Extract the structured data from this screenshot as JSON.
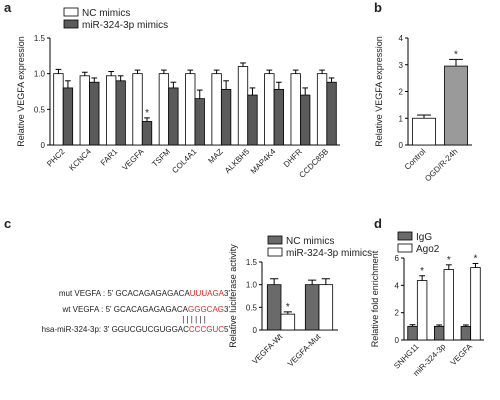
{
  "chart_data": [
    {
      "type": "bar",
      "panel_label": "a",
      "y_label": "Relative VEGFA expression",
      "categories": [
        "PHC2",
        "KCNC4",
        "FAR1",
        "VEGFA",
        "TSFM",
        "COL4A1",
        "MAZ",
        "ALKBH5",
        "MAP4K4",
        "DHFR",
        "CCDC85B"
      ],
      "series": [
        {
          "name": "NC mimics",
          "color": "#ffffff",
          "values": [
            1.0,
            0.97,
            0.97,
            1.0,
            1.0,
            1.0,
            1.0,
            1.1,
            1.0,
            1.0,
            1.0
          ],
          "errors": [
            0.06,
            0.05,
            0.06,
            0.05,
            0.05,
            0.05,
            0.05,
            0.05,
            0.05,
            0.05,
            0.05
          ],
          "labels": [
            null,
            null,
            null,
            null,
            null,
            null,
            null,
            null,
            null,
            null,
            null
          ]
        },
        {
          "name": "miR-324-3p mimics",
          "color": "#5a5a5a",
          "values": [
            0.8,
            0.88,
            0.9,
            0.33,
            0.8,
            0.65,
            0.78,
            0.7,
            0.78,
            0.7,
            0.88
          ],
          "errors": [
            0.1,
            0.06,
            0.07,
            0.05,
            0.08,
            0.12,
            0.12,
            0.1,
            0.1,
            0.1,
            0.06
          ],
          "labels": [
            null,
            null,
            null,
            "*",
            null,
            null,
            null,
            null,
            null,
            null,
            null
          ]
        }
      ],
      "ylim": [
        0,
        1.5
      ],
      "yticks": [
        0,
        0.5,
        {
          "value": 1,
          "label": "1.0"
        },
        1.5
      ]
    },
    {
      "type": "bar",
      "panel_label": "b",
      "y_label": "Relative VEGFA expression",
      "categories": [
        "Control",
        "OGD/R-24h"
      ],
      "values": [
        1.0,
        2.95
      ],
      "errors": [
        0.12,
        0.25
      ],
      "colors": [
        "#ffffff",
        "#9a9a9a"
      ],
      "labels": [
        null,
        "*"
      ],
      "ylim": [
        0,
        4
      ],
      "yticks": [
        0,
        1,
        2,
        3,
        4
      ]
    },
    {
      "type": "bar",
      "panel_label": "c",
      "y_label": "Relative luciferase activity",
      "categories": [
        "VEGFA-Wt",
        "VEGFA-Mut"
      ],
      "series": [
        {
          "name": "NC mimics",
          "color": "#6a6a6a",
          "values": [
            1.0,
            1.0
          ],
          "errors": [
            0.13,
            0.1
          ],
          "labels": [
            null,
            null
          ]
        },
        {
          "name": "miR-324-3p mimics",
          "color": "#ffffff",
          "values": [
            0.35,
            1.0
          ],
          "errors": [
            0.05,
            0.13
          ],
          "labels": [
            "*",
            null
          ]
        }
      ],
      "ylim": [
        0,
        1.5
      ],
      "yticks": [
        0,
        0.5,
        {
          "value": 1,
          "label": "1.0"
        },
        1.5
      ]
    },
    {
      "type": "bar",
      "panel_label": "d",
      "y_label": "Relative fold enrichment",
      "categories": [
        "SNHG11",
        "miR-324-3p",
        "VEGFA"
      ],
      "series": [
        {
          "name": "IgG",
          "color": "#6a6a6a",
          "values": [
            1.0,
            1.0,
            1.0
          ],
          "errors": [
            0.12,
            0.1,
            0.1
          ],
          "labels": [
            null,
            null,
            null
          ]
        },
        {
          "name": "Ago2",
          "color": "#ffffff",
          "values": [
            4.35,
            5.15,
            5.3
          ],
          "errors": [
            0.35,
            0.35,
            0.3
          ],
          "labels": [
            "*",
            "*",
            "*"
          ]
        }
      ],
      "ylim": [
        0,
        6
      ],
      "yticks": [
        0,
        2,
        4,
        6
      ]
    }
  ],
  "alignment": {
    "mut": {
      "prefix": "mut VEGFA : 5' GCACAGAGAGACA",
      "site": "UUUAGA",
      "suffix": "3'"
    },
    "wt": {
      "prefix": "wt VEGFA : 5' GCACAGAGAGACA",
      "site": "GGGCAG",
      "suffix": "3'"
    },
    "pairs": "| | | | | |",
    "mirna": {
      "prefix": "hsa-miR-324-3p: 3' GGUCGUCGUGGAC",
      "site": "CCCGUC",
      "suffix": "5'"
    }
  }
}
